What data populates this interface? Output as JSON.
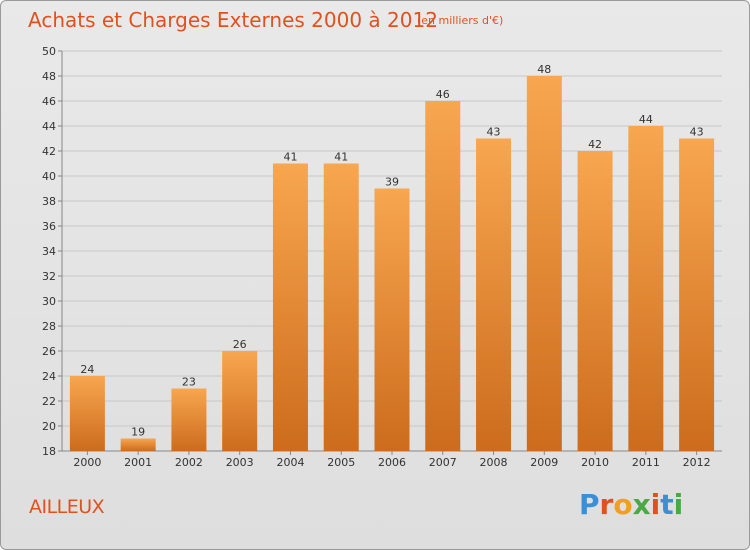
{
  "header": {
    "title": "Achats et Charges Externes 2000 à 2012",
    "subtitle": "(en milliers d'€)"
  },
  "footer": {
    "commune": "AILLEUX",
    "logo": "Proxiti"
  },
  "colors": {
    "bar_top": "#f8a650",
    "bar_bottom": "#cc6c1c",
    "title": "#e0521d"
  },
  "chart_data": {
    "type": "bar",
    "title": "Achats et Charges Externes 2000 à 2012",
    "subtitle": "(en milliers d'€)",
    "categories": [
      "2000",
      "2001",
      "2002",
      "2003",
      "2004",
      "2005",
      "2006",
      "2007",
      "2008",
      "2009",
      "2010",
      "2011",
      "2012"
    ],
    "values": [
      24,
      19,
      23,
      26,
      41,
      41,
      39,
      46,
      43,
      48,
      42,
      44,
      43
    ],
    "ylim": [
      18,
      50
    ],
    "yticks": [
      18,
      20,
      22,
      24,
      26,
      28,
      30,
      32,
      34,
      36,
      38,
      40,
      42,
      44,
      46,
      48,
      50
    ],
    "grid": true
  }
}
